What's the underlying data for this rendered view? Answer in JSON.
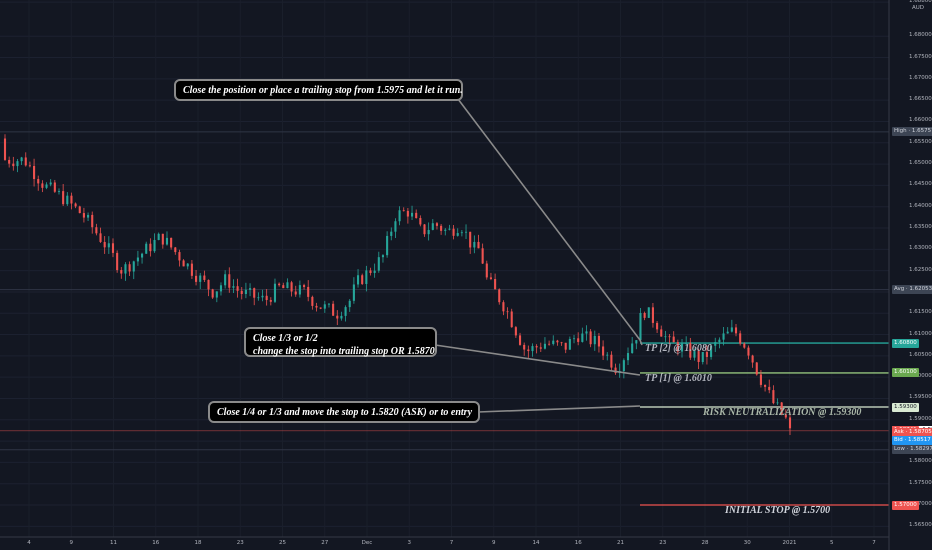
{
  "chart_data": {
    "type": "candlestick",
    "symbol": "EURAUD",
    "currency": "AUD",
    "ylim": [
      1.5625,
      1.6885
    ],
    "y_ticks": [
      "1.68800",
      "1.68000",
      "1.67500",
      "1.67000",
      "1.66500",
      "1.66000",
      "1.65500",
      "1.65000",
      "1.64500",
      "1.64000",
      "1.63500",
      "1.63000",
      "1.62500",
      "1.62000",
      "1.61500",
      "1.61000",
      "1.60500",
      "1.60000",
      "1.59500",
      "1.59000",
      "1.58500",
      "1.58000",
      "1.57500",
      "1.57000",
      "1.56500"
    ],
    "x_ticks": [
      "4",
      "9",
      "11",
      "16",
      "18",
      "23",
      "25",
      "27",
      "Dec",
      "3",
      "7",
      "9",
      "14",
      "16",
      "21",
      "23",
      "28",
      "30",
      "2021",
      "5",
      "7"
    ],
    "close_path": [
      {
        "d": 1.5,
        "c": 1.651
      },
      {
        "d": 3,
        "c": 1.645
      },
      {
        "d": 4.5,
        "c": 1.642
      },
      {
        "d": 6,
        "c": 1.638
      },
      {
        "d": 7.5,
        "c": 1.632
      },
      {
        "d": 9,
        "c": 1.625
      },
      {
        "d": 10.5,
        "c": 1.629
      },
      {
        "d": 12,
        "c": 1.633
      },
      {
        "d": 13.5,
        "c": 1.628
      },
      {
        "d": 15,
        "c": 1.623
      },
      {
        "d": 16,
        "c": 1.62
      },
      {
        "d": 17,
        "c": 1.623
      },
      {
        "d": 18,
        "c": 1.62
      },
      {
        "d": 20,
        "c": 1.618
      },
      {
        "d": 21,
        "c": 1.621
      },
      {
        "d": 23,
        "c": 1.62
      },
      {
        "d": 24,
        "c": 1.617
      },
      {
        "d": 25.5,
        "c": 1.615
      },
      {
        "d": 26.5,
        "c": 1.618
      },
      {
        "d": 27,
        "c": 1.622
      },
      {
        "d": 29,
        "c": 1.628
      },
      {
        "d": 30,
        "c": 1.638
      },
      {
        "d": 31,
        "c": 1.639
      },
      {
        "d": 32,
        "c": 1.634
      },
      {
        "d": 33,
        "c": 1.636
      },
      {
        "d": 34,
        "c": 1.634
      },
      {
        "d": 35,
        "c": 1.636
      },
      {
        "d": 36,
        "c": 1.63
      },
      {
        "d": 36.5,
        "c": 1.63
      },
      {
        "d": 37,
        "c": 1.623
      },
      {
        "d": 38.5,
        "c": 1.616
      },
      {
        "d": 40,
        "c": 1.606
      },
      {
        "d": 41.5,
        "c": 1.608
      },
      {
        "d": 43,
        "c": 1.607
      },
      {
        "d": 44,
        "c": 1.61
      },
      {
        "d": 45.5,
        "c": 1.608
      },
      {
        "d": 47,
        "c": 1.602
      },
      {
        "d": 48.5,
        "c": 1.61
      },
      {
        "d": 49,
        "c": 1.616
      },
      {
        "d": 50,
        "c": 1.613
      },
      {
        "d": 51,
        "c": 1.608
      },
      {
        "d": 52,
        "c": 1.607
      },
      {
        "d": 53.5,
        "c": 1.604
      },
      {
        "d": 55,
        "c": 1.609
      },
      {
        "d": 56,
        "c": 1.611
      },
      {
        "d": 57,
        "c": 1.607
      },
      {
        "d": 58,
        "c": 1.6
      },
      {
        "d": 59,
        "c": 1.594
      },
      {
        "d": 60,
        "c": 1.59
      },
      {
        "d": 60.3,
        "c": 1.587
      }
    ],
    "summary_levels": [
      {
        "name": "High",
        "value": 1.65757,
        "label": "High · 1.65757",
        "color": "#3d4554"
      },
      {
        "name": "Avg",
        "value": 1.62053,
        "label": "Avg · 1.62053",
        "color": "#3d4554"
      },
      {
        "name": "Low",
        "value": 1.58297,
        "label": "Low · 1.58297",
        "color": "#3d4554"
      }
    ],
    "price_tags": [
      {
        "value": 1.608,
        "label": "1.60800",
        "bg": "#26a69a",
        "fg": "#ffffff"
      },
      {
        "value": 1.601,
        "label": "1.60100",
        "bg": "#6aa84f",
        "fg": "#ffffff"
      },
      {
        "value": 1.593,
        "label": "1.59300",
        "bg": "#d9ead3",
        "fg": "#131722"
      },
      {
        "value": 1.58757,
        "label": "EURAUD · 1.58757",
        "bg": "#ffffff",
        "fg": "#131722"
      },
      {
        "value": 1.58741,
        "label": "1.58741",
        "bg": "#ef5350",
        "fg": "#ffffff"
      },
      {
        "value": 1.58705,
        "label": "Ask · 1.58705",
        "bg": "#ef5350",
        "fg": "#ffffff"
      },
      {
        "value": 1.58517,
        "label": "Bid · 1.58517",
        "bg": "#2196f3",
        "fg": "#ffffff"
      },
      {
        "value": 1.57,
        "label": "1.57000",
        "bg": "#ef5350",
        "fg": "#ffffff"
      }
    ],
    "annotations": {
      "callouts": [
        "Close the position or place a trailing stop from 1.5975 and let it run.",
        "Close 1/3 or 1/2",
        "change the stop into trailing stop OR 1.5870",
        "Close 1/4 or 1/3 and move the stop to 1.5820 (ASK) or to entry"
      ],
      "levels": {
        "tp2": "TP [2] @ 1.6080",
        "tp1": "TP [1] @ 1.6010",
        "risk": "RISK NEUTRALIZATION @ 1.59300",
        "stop": "INITIAL STOP @ 1.5700"
      }
    },
    "colors": {
      "up": "#26a69a",
      "down": "#ef5350",
      "tp2": "#26a69a",
      "tp1": "#93c47d",
      "risk": "#d9ead3",
      "stop": "#ef5350"
    }
  }
}
